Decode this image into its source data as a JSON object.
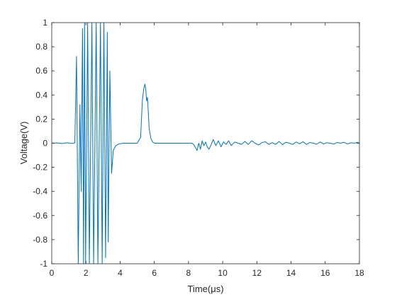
{
  "chart_data": {
    "type": "line",
    "title": "",
    "xlabel": "Time(μs)",
    "ylabel": "Voltage(V)",
    "xlim": [
      0,
      18
    ],
    "ylim": [
      -1,
      1
    ],
    "grid": false,
    "legend": "none",
    "xticks": [
      "0",
      "2",
      "4",
      "6",
      "8",
      "10",
      "12",
      "14",
      "16",
      "18"
    ],
    "yticks": [
      "-1",
      "-0.8",
      "-0.6",
      "-0.4",
      "-0.2",
      "0",
      "0.2",
      "0.4",
      "0.6",
      "0.8",
      "1"
    ],
    "series": [
      {
        "color": "#0072BD",
        "x": [
          0,
          0.3,
          0.6,
          0.9,
          1.2,
          1.35,
          1.45,
          1.55,
          1.65,
          1.72,
          1.8,
          1.86,
          1.92,
          1.98,
          2.1,
          2.2,
          2.35,
          2.45,
          2.6,
          2.7,
          2.85,
          2.95,
          3.05,
          3.15,
          3.25,
          3.3,
          3.4,
          3.5,
          3.6,
          3.75,
          3.95,
          4.2,
          4.6,
          5.0,
          5.2,
          5.25,
          5.3,
          5.38,
          5.45,
          5.5,
          5.55,
          5.6,
          5.65,
          5.7,
          5.8,
          5.9,
          6.0,
          6.1,
          6.3,
          6.6,
          7.0,
          7.5,
          8.0,
          8.2,
          8.3,
          8.5,
          8.6,
          8.7,
          8.8,
          8.9,
          9.0,
          9.1,
          9.2,
          9.3,
          9.45,
          9.6,
          9.75,
          9.9,
          10.05,
          10.2,
          10.35,
          10.5,
          10.7,
          10.9,
          11.1,
          11.3,
          11.5,
          11.7,
          11.9,
          12.1,
          12.3,
          12.5,
          12.7,
          12.9,
          13.1,
          13.3,
          13.5,
          13.7,
          13.9,
          14.1,
          14.3,
          14.5,
          14.7,
          14.9,
          15.1,
          15.3,
          15.5,
          15.7,
          15.9,
          16.1,
          16.3,
          16.5,
          16.7,
          16.9,
          17.1,
          17.3,
          17.5,
          17.7,
          17.9,
          18.0
        ],
        "y": [
          0.0,
          0.002,
          -0.003,
          0.004,
          -0.002,
          0.003,
          0.72,
          -1.0,
          0.32,
          -0.4,
          0.95,
          -1.0,
          1.0,
          -1.0,
          1.0,
          -1.0,
          1.0,
          -1.0,
          1.0,
          -1.0,
          1.0,
          -1.0,
          1.0,
          -0.95,
          0.92,
          -0.82,
          0.6,
          -0.25,
          -0.06,
          -0.02,
          -0.005,
          0.0,
          0.0,
          0.0,
          0.05,
          0.2,
          0.35,
          0.45,
          0.49,
          0.45,
          0.35,
          0.38,
          0.25,
          0.12,
          0.04,
          0.01,
          0.0,
          0.0,
          0.0,
          0.0,
          0.0,
          0.0,
          0.0,
          0.0,
          -0.01,
          -0.06,
          0.0,
          -0.05,
          0.02,
          -0.02,
          0.01,
          -0.03,
          -0.05,
          -0.02,
          0.03,
          -0.02,
          0.02,
          -0.03,
          0.01,
          -0.01,
          0.02,
          -0.02,
          0.01,
          0.0,
          -0.01,
          0.015,
          -0.01,
          0.02,
          0.0,
          -0.015,
          0.005,
          0.012,
          -0.01,
          0.005,
          -0.01,
          0.015,
          -0.012,
          0.008,
          0.0,
          -0.01,
          0.01,
          -0.005,
          0.012,
          -0.01,
          0.006,
          0.0,
          -0.008,
          0.01,
          -0.006,
          0.004,
          0.0,
          -0.008,
          0.006,
          0.0,
          0.008,
          -0.006,
          0.004,
          0.0,
          0.008,
          0.0
        ]
      }
    ]
  }
}
